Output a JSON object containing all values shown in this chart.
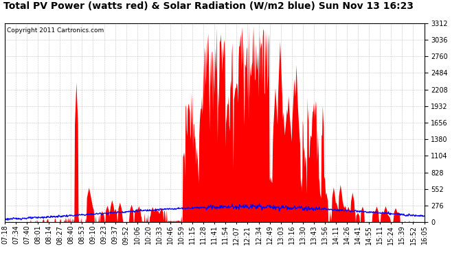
{
  "title": "Total PV Power (watts red) & Solar Radiation (W/m2 blue) Sun Nov 13 16:23",
  "copyright_text": "Copyright 2011 Cartronics.com",
  "background_color": "#ffffff",
  "plot_bg_color": "#ffffff",
  "grid_color": "#aaaaaa",
  "y_max": 3311.9,
  "y_min": 0.0,
  "y_ticks": [
    0.0,
    276.0,
    552.0,
    828.0,
    1104.0,
    1380.0,
    1655.9,
    1931.9,
    2207.9,
    2483.9,
    2759.9,
    3035.9,
    3311.9
  ],
  "x_labels": [
    "07:18",
    "07:34",
    "07:40",
    "08:01",
    "08:14",
    "08:27",
    "08:40",
    "08:53",
    "09:10",
    "09:23",
    "09:37",
    "09:52",
    "10:06",
    "10:20",
    "10:33",
    "10:46",
    "10:59",
    "11:15",
    "11:28",
    "11:41",
    "11:54",
    "12:07",
    "12:21",
    "12:34",
    "12:49",
    "13:03",
    "13:16",
    "13:30",
    "13:43",
    "13:56",
    "14:11",
    "14:26",
    "14:41",
    "14:55",
    "15:11",
    "15:24",
    "15:39",
    "15:52",
    "16:05"
  ],
  "red_color": "#ff0000",
  "blue_color": "#0000ff",
  "title_fontsize": 10,
  "tick_fontsize": 7,
  "copyright_fontsize": 6.5
}
